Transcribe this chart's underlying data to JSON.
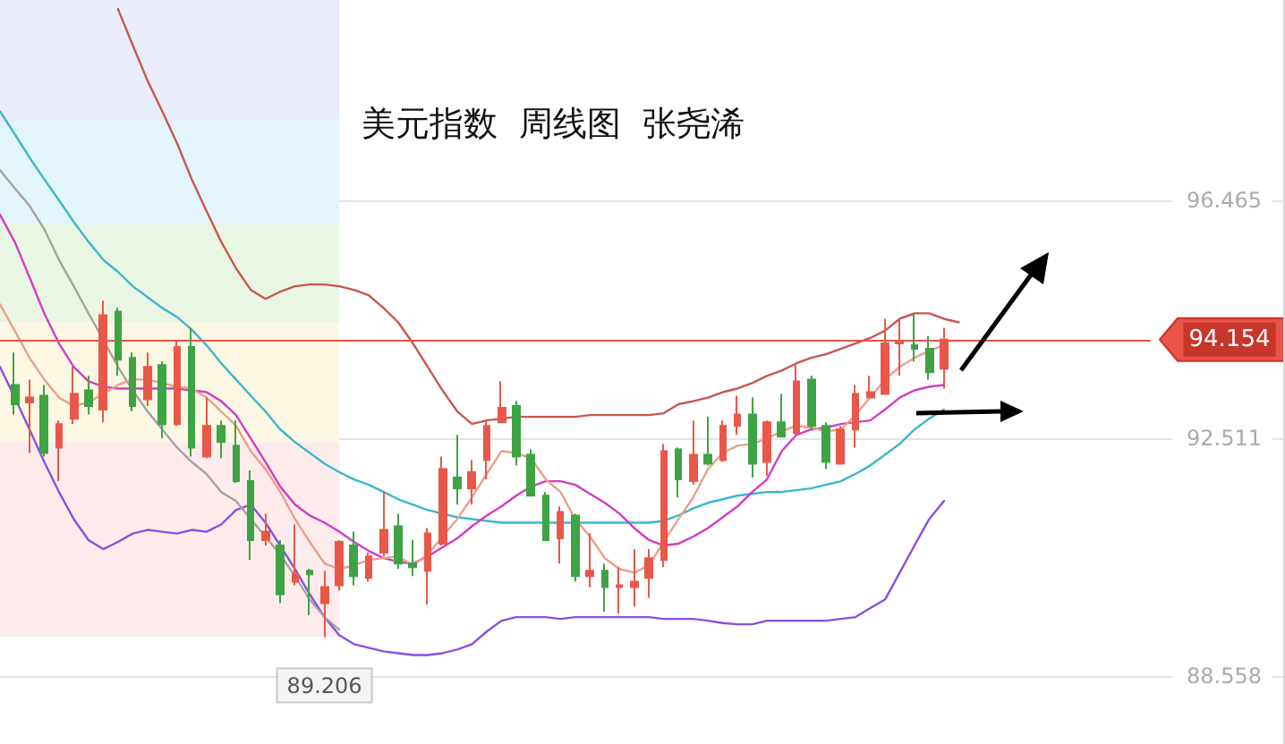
{
  "chart_data": {
    "type": "candlestick",
    "title": "美元指数  周线图  张尧浠",
    "categories": [
      null,
      null,
      null,
      null,
      null,
      null,
      null,
      null,
      null,
      null,
      null,
      null,
      null,
      null,
      null,
      null,
      null,
      null,
      null,
      null,
      null,
      null,
      null,
      null,
      null,
      null,
      null,
      null,
      null,
      null,
      null,
      null,
      null,
      null,
      null,
      null,
      null,
      null,
      null,
      null,
      null,
      null,
      null,
      null,
      null,
      null,
      null,
      null,
      null,
      null,
      null,
      null,
      null,
      null,
      null,
      null,
      null,
      null,
      null,
      null,
      null,
      null,
      null,
      null,
      null,
      null,
      null,
      null,
      null,
      null,
      null,
      null,
      null,
      null,
      null,
      null,
      null,
      null,
      null,
      null,
      null,
      null,
      null,
      null,
      null,
      null,
      null,
      null
    ],
    "ylim": [
      87.43,
      99.8
    ],
    "yticks": [
      88.558,
      92.511,
      96.465
    ],
    "tick_labels": "y",
    "grid": "y",
    "marker": "none",
    "line_style": "solid",
    "series": [
      {
        "type": "candlestick",
        "ohlc": [
          null,
          [
            93.4,
            93.94,
            92.91,
            93.08
          ],
          [
            93.11,
            93.49,
            92.27,
            93.19
          ],
          [
            93.22,
            93.4,
            92.21,
            92.27
          ],
          [
            92.36,
            92.81,
            91.8,
            92.75
          ],
          [
            92.84,
            93.7,
            92.75,
            93.25
          ],
          [
            93.31,
            93.55,
            92.91,
            93.05
          ],
          [
            92.99,
            94.8,
            92.78,
            94.56
          ],
          [
            94.62,
            94.68,
            93.55,
            93.82
          ],
          [
            93.85,
            93.94,
            92.96,
            93.05
          ],
          [
            93.16,
            93.94,
            93.05,
            93.7
          ],
          [
            93.73,
            93.79,
            92.51,
            92.75
          ],
          [
            92.75,
            94.12,
            92.72,
            94.03
          ],
          [
            94.03,
            94.35,
            92.21,
            92.36
          ],
          [
            92.21,
            93.19,
            92.18,
            92.72
          ],
          [
            92.72,
            92.81,
            92.18,
            92.45
          ],
          [
            92.39,
            92.81,
            91.77,
            91.8
          ],
          [
            91.8,
            91.98,
            90.49,
            90.82
          ],
          [
            90.82,
            91.26,
            90.73,
            90.96
          ],
          [
            90.73,
            90.82,
            89.77,
            89.92
          ],
          [
            90.13,
            91.08,
            90.07,
            90.25
          ],
          [
            90.31,
            90.34,
            89.57,
            90.25
          ],
          [
            89.77,
            90.31,
            89.206,
            90.04
          ],
          [
            90.07,
            90.82,
            89.98,
            90.79
          ],
          [
            90.73,
            90.96,
            90.07,
            90.22
          ],
          [
            90.19,
            90.61,
            90.13,
            90.55
          ],
          [
            90.61,
            91.62,
            90.55,
            90.99
          ],
          [
            91.05,
            91.26,
            90.34,
            90.43
          ],
          [
            90.43,
            90.82,
            90.22,
            90.37
          ],
          [
            90.31,
            91.02,
            89.75,
            90.93
          ],
          [
            90.76,
            92.21,
            90.73,
            92.0
          ],
          [
            91.86,
            92.57,
            91.41,
            91.68
          ],
          [
            91.68,
            92.15,
            91.41,
            91.95
          ],
          [
            92.15,
            92.81,
            91.83,
            92.72
          ],
          [
            92.78,
            93.46,
            92.78,
            93.02
          ],
          [
            93.05,
            93.13,
            92.06,
            92.21
          ],
          [
            92.24,
            92.33,
            91.56,
            91.56
          ],
          [
            91.56,
            91.62,
            90.82,
            90.82
          ],
          [
            90.85,
            91.38,
            90.43,
            91.29
          ],
          [
            91.23,
            91.26,
            90.13,
            90.22
          ],
          [
            90.22,
            90.93,
            90.04,
            90.31
          ],
          [
            90.31,
            90.43,
            89.63,
            90.04
          ],
          [
            90.04,
            90.37,
            89.6,
            90.07
          ],
          [
            90.04,
            90.67,
            89.72,
            90.13
          ],
          [
            90.19,
            90.67,
            89.86,
            90.52
          ],
          [
            90.49,
            92.42,
            90.37,
            92.3
          ],
          [
            92.33,
            92.36,
            91.53,
            91.83
          ],
          [
            91.8,
            92.81,
            91.74,
            92.24
          ],
          [
            92.24,
            92.87,
            92.06,
            92.09
          ],
          [
            92.15,
            92.81,
            92.12,
            92.72
          ],
          [
            92.72,
            93.22,
            92.57,
            92.91
          ],
          [
            92.91,
            93.19,
            91.86,
            92.09
          ],
          [
            92.12,
            92.81,
            91.89,
            92.78
          ],
          [
            92.78,
            93.25,
            92.54,
            92.54
          ],
          [
            92.6,
            93.76,
            92.57,
            93.46
          ],
          [
            93.49,
            93.55,
            92.66,
            92.72
          ],
          [
            92.72,
            92.78,
            92.0,
            92.12
          ],
          [
            92.09,
            92.72,
            92.09,
            92.66
          ],
          [
            92.66,
            93.4,
            92.36,
            93.25
          ],
          [
            93.19,
            93.55,
            93.19,
            93.28
          ],
          [
            93.25,
            94.5,
            93.25,
            94.09
          ],
          [
            94.09,
            94.5,
            93.55,
            94.12
          ],
          [
            94.06,
            94.59,
            93.79,
            94.0
          ],
          [
            94.0,
            94.21,
            93.49,
            93.61
          ],
          [
            93.67,
            94.35,
            93.34,
            94.154
          ],
          null,
          null,
          null,
          null,
          null,
          null,
          null,
          null,
          null,
          null,
          null,
          null,
          null,
          null,
          null,
          null,
          null,
          null,
          null,
          null,
          null,
          null,
          null
        ],
        "colors": [
          null,
          "#3ea345",
          "#e9574a",
          "#3ea345",
          "#e9574a",
          "#e9574a",
          "#3ea345",
          "#e9574a",
          "#3ea345",
          "#3ea345",
          "#e9574a",
          "#3ea345",
          "#e9574a",
          "#3ea345",
          "#e9574a",
          "#3ea345",
          "#3ea345",
          "#3ea345",
          "#e9574a",
          "#3ea345",
          "#e9574a",
          "#3ea345",
          "#e9574a",
          "#e9574a",
          "#3ea345",
          "#e9574a",
          "#e9574a",
          "#3ea345",
          "#3ea345",
          "#e9574a",
          "#e9574a",
          "#3ea345",
          "#e9574a",
          "#e9574a",
          "#e9574a",
          "#3ea345",
          "#3ea345",
          "#3ea345",
          "#e9574a",
          "#3ea345",
          "#e9574a",
          "#3ea345",
          "#e9574a",
          "#e9574a",
          "#e9574a",
          "#e9574a",
          "#3ea345",
          "#e9574a",
          "#3ea345",
          "#e9574a",
          "#e9574a",
          "#3ea345",
          "#e9574a",
          "#3ea345",
          "#e9574a",
          "#3ea345",
          "#3ea345",
          "#e9574a",
          "#e9574a",
          "#e9574a",
          "#e9574a",
          "#e9574a",
          "#3ea345",
          "#3ea345",
          "#e9574a",
          null,
          null,
          null,
          null,
          null,
          null,
          null,
          null,
          null,
          null,
          null,
          null,
          null,
          null,
          null,
          null,
          null,
          null,
          null,
          null,
          null,
          null,
          null
        ]
      },
      {
        "type": "line",
        "color": "#c8574e",
        "values": [
          null,
          null,
          null,
          null,
          null,
          null,
          null,
          null,
          99.65,
          99.05,
          98.46,
          97.95,
          97.42,
          96.82,
          96.29,
          95.78,
          95.34,
          94.98,
          94.83,
          94.95,
          95.04,
          95.07,
          95.07,
          95.04,
          94.98,
          94.89,
          94.68,
          94.44,
          94.09,
          93.7,
          93.31,
          92.96,
          92.75,
          92.81,
          92.84,
          92.87,
          92.87,
          92.87,
          92.87,
          92.87,
          92.9,
          92.9,
          92.9,
          92.9,
          92.9,
          92.93,
          93.08,
          93.13,
          93.19,
          93.28,
          93.34,
          93.43,
          93.55,
          93.64,
          93.76,
          93.85,
          93.91,
          94.0,
          94.09,
          94.18,
          94.3,
          94.5,
          94.59,
          94.59,
          94.5,
          94.44,
          null,
          null,
          null,
          null,
          null,
          null,
          null,
          null,
          null,
          null,
          null,
          null,
          null,
          null,
          null,
          null,
          null,
          null,
          null,
          null,
          null,
          null
        ]
      },
      {
        "type": "line",
        "color": "#8a4fe0",
        "values": [
          93.7,
          93.19,
          92.66,
          92.12,
          91.62,
          91.17,
          90.82,
          90.67,
          90.79,
          90.93,
          90.99,
          90.96,
          90.93,
          90.99,
          90.96,
          91.08,
          91.32,
          91.41,
          91.11,
          90.73,
          90.34,
          89.92,
          89.54,
          89.24,
          89.09,
          89.03,
          88.97,
          88.94,
          88.91,
          88.91,
          88.94,
          89.0,
          89.09,
          89.3,
          89.48,
          89.54,
          89.54,
          89.54,
          89.51,
          89.54,
          89.54,
          89.54,
          89.54,
          89.54,
          89.54,
          89.51,
          89.51,
          89.51,
          89.48,
          89.44,
          89.42,
          89.42,
          89.48,
          89.48,
          89.48,
          89.48,
          89.48,
          89.51,
          89.54,
          89.69,
          89.83,
          90.28,
          90.73,
          91.17,
          91.47,
          null,
          null,
          null,
          null,
          null,
          null,
          null,
          null,
          null,
          null,
          null,
          null,
          null,
          null,
          null,
          null,
          null,
          null,
          null,
          null,
          null,
          null,
          null
        ]
      },
      {
        "type": "line",
        "color": "#3ab6cc",
        "values": [
          97.95,
          97.57,
          97.18,
          96.82,
          96.47,
          96.11,
          95.78,
          95.48,
          95.28,
          95.04,
          94.86,
          94.68,
          94.53,
          94.32,
          94.06,
          93.76,
          93.49,
          93.22,
          92.96,
          92.66,
          92.45,
          92.27,
          92.09,
          91.95,
          91.83,
          91.74,
          91.62,
          91.5,
          91.41,
          91.32,
          91.26,
          91.2,
          91.17,
          91.14,
          91.11,
          91.11,
          91.11,
          91.11,
          91.11,
          91.11,
          91.11,
          91.11,
          91.11,
          91.11,
          91.11,
          91.14,
          91.23,
          91.35,
          91.44,
          91.5,
          91.56,
          91.59,
          91.62,
          91.62,
          91.65,
          91.68,
          91.74,
          91.8,
          91.92,
          92.06,
          92.24,
          92.42,
          92.66,
          92.84,
          92.99,
          null,
          null,
          null,
          null,
          null,
          null,
          null,
          null,
          null,
          null,
          null,
          null,
          null,
          null,
          null,
          null,
          null,
          null,
          null,
          null,
          null,
          null,
          null
        ]
      },
      {
        "type": "line",
        "color": "#a8a0a0",
        "values": [
          96.97,
          96.67,
          96.38,
          95.99,
          95.48,
          95.04,
          94.59,
          94.15,
          93.7,
          93.31,
          92.96,
          92.66,
          92.36,
          92.12,
          91.92,
          91.62,
          91.47,
          91.17,
          90.88,
          90.58,
          90.22,
          89.83,
          89.54,
          89.33,
          null,
          null,
          null,
          null,
          null,
          null,
          null,
          null,
          null,
          null,
          null,
          null,
          null,
          null,
          null,
          null,
          null,
          null,
          null,
          null,
          null,
          null,
          null,
          null,
          null,
          null,
          null,
          null,
          null,
          null,
          null,
          null,
          null,
          null,
          null,
          null,
          null,
          null,
          null,
          null,
          null,
          null,
          null,
          null,
          null,
          null,
          null,
          null,
          null,
          null,
          null,
          null,
          null,
          null,
          null,
          null,
          null,
          null,
          null,
          null,
          null,
          null,
          null,
          null
        ]
      },
      {
        "type": "line",
        "color": "#d23cc8",
        "values": [
          96.23,
          95.78,
          95.19,
          94.59,
          94.09,
          93.7,
          93.46,
          93.37,
          93.34,
          93.34,
          93.34,
          93.34,
          93.34,
          93.31,
          93.28,
          93.13,
          92.9,
          92.51,
          92.12,
          91.71,
          91.41,
          91.23,
          91.11,
          90.96,
          90.79,
          90.64,
          90.52,
          90.46,
          90.43,
          90.55,
          90.7,
          90.85,
          91.05,
          91.23,
          91.38,
          91.56,
          91.71,
          91.8,
          91.8,
          91.74,
          91.59,
          91.44,
          91.26,
          91.02,
          90.82,
          90.73,
          90.76,
          90.88,
          91.02,
          91.2,
          91.38,
          91.62,
          91.83,
          92.3,
          92.57,
          92.66,
          92.69,
          92.75,
          92.78,
          92.81,
          92.99,
          93.19,
          93.31,
          93.37,
          93.4,
          null,
          null,
          null,
          null,
          null,
          null,
          null,
          null,
          null,
          null,
          null,
          null,
          null,
          null,
          null,
          null,
          null,
          null,
          null,
          null,
          null,
          null,
          null
        ]
      },
      {
        "type": "line",
        "color": "#eaa08a",
        "values": [
          94.74,
          94.3,
          93.85,
          93.49,
          93.19,
          93.05,
          93.11,
          93.25,
          93.4,
          93.49,
          93.49,
          93.43,
          93.37,
          93.34,
          93.19,
          92.96,
          92.72,
          92.3,
          92.0,
          91.62,
          91.17,
          90.79,
          90.43,
          90.34,
          90.4,
          90.49,
          90.52,
          90.55,
          90.4,
          90.58,
          90.88,
          91.17,
          91.53,
          91.92,
          92.3,
          92.27,
          92.18,
          91.83,
          91.62,
          91.17,
          90.88,
          90.52,
          90.34,
          90.28,
          90.4,
          90.79,
          91.17,
          91.53,
          92.0,
          92.27,
          92.39,
          92.42,
          92.51,
          92.63,
          92.72,
          92.69,
          92.63,
          92.66,
          92.9,
          93.19,
          93.49,
          93.7,
          93.85,
          93.97,
          94.06,
          null,
          null,
          null,
          null,
          null,
          null,
          null,
          null,
          null,
          null,
          null,
          null,
          null,
          null,
          null,
          null,
          null,
          null,
          null,
          null,
          null,
          null,
          null
        ]
      }
    ],
    "bands": [
      {
        "axis": "y",
        "from": 97.77,
        "to": 99.8,
        "color": "#e9edfa"
      },
      {
        "axis": "y",
        "from": 96.08,
        "to": 97.77,
        "color": "#e3f4fb"
      },
      {
        "axis": "y",
        "from": 94.44,
        "to": 96.08,
        "color": "#e9f6e4"
      },
      {
        "axis": "y",
        "from": 92.45,
        "to": 94.44,
        "color": "#fdf8e3"
      },
      {
        "axis": "y",
        "from": 89.21,
        "to": 92.45,
        "color": "#fdeceb"
      }
    ],
    "ref_lines": [
      {
        "axis": "y",
        "value": 94.154,
        "label": "94.154",
        "color": "#e8534a"
      }
    ],
    "annotations": [
      {
        "text": "89.206",
        "y": 89.206
      }
    ]
  }
}
